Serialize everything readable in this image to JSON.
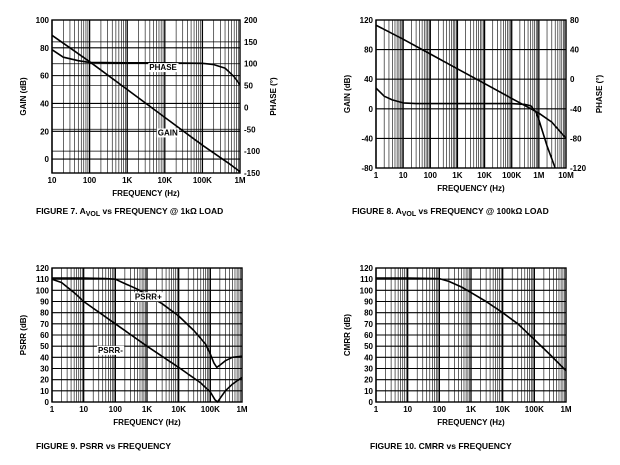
{
  "charts": [
    {
      "type": "line",
      "caption": "FIGURE 7.  AVOL vs FREQUENCY @ 1kΩ LOAD",
      "caption_parts": {
        "pre": "FIGURE 7.  A",
        "sub": "VOL",
        "post": " vs FREQUENCY @ 1kΩ LOAD"
      },
      "xlabel": "FREQUENCY (Hz)",
      "ylabel": "GAIN (dB)",
      "y2label": "PHASE (°)",
      "xlim": [
        10,
        1000000
      ],
      "x_ticks": [
        {
          "v": 10,
          "t": "10"
        },
        {
          "v": 100,
          "t": "100"
        },
        {
          "v": 1000,
          "t": "1K"
        },
        {
          "v": 10000,
          "t": "10K"
        },
        {
          "v": 100000,
          "t": "100K"
        },
        {
          "v": 1000000,
          "t": "1M"
        }
      ],
      "ylim": [
        -10,
        100
      ],
      "y_ticks": [
        {
          "v": 100,
          "t": "100"
        },
        {
          "v": 80,
          "t": "80"
        },
        {
          "v": 60,
          "t": "60"
        },
        {
          "v": 40,
          "t": "40"
        },
        {
          "v": 20,
          "t": "20"
        },
        {
          "v": 0,
          "t": "0"
        }
      ],
      "y2lim": [
        -150,
        200
      ],
      "y2_ticks": [
        {
          "v": 200,
          "t": "200"
        },
        {
          "v": 150,
          "t": "150"
        },
        {
          "v": 100,
          "t": "100"
        },
        {
          "v": 50,
          "t": "50"
        },
        {
          "v": 0,
          "t": "0"
        },
        {
          "v": -50,
          "t": "-50"
        },
        {
          "v": -100,
          "t": "-100"
        },
        {
          "v": -150,
          "t": "-150"
        }
      ],
      "series": [
        {
          "name": "GAIN",
          "axis": "y",
          "x": [
            10,
            30,
            100,
            1000,
            10000,
            100000,
            500000,
            1000000
          ],
          "values": [
            89,
            80,
            70,
            50,
            30,
            10,
            -3,
            -9
          ]
        },
        {
          "name": "PHASE",
          "axis": "y2",
          "x": [
            10,
            20,
            50,
            100,
            1000,
            10000,
            100000,
            200000,
            400000,
            700000,
            1000000
          ],
          "values": [
            132,
            115,
            107,
            103,
            102,
            102,
            101,
            98,
            90,
            70,
            52
          ]
        }
      ],
      "annotations": [
        {
          "text": "PHASE",
          "x": 9000,
          "y": 64
        },
        {
          "text": "GAIN",
          "x": 12000,
          "y": 17
        }
      ]
    },
    {
      "type": "line",
      "caption": "FIGURE 8.  AVOL vs FREQUENCY @ 100kΩ LOAD",
      "caption_parts": {
        "pre": "FIGURE 8.  A",
        "sub": "VOL",
        "post": " vs FREQUENCY @ 100kΩ LOAD"
      },
      "xlabel": "FREQUENCY (Hz)",
      "ylabel": "GAIN (dB)",
      "y2label": "PHASE (°)",
      "xlim": [
        1,
        10000000
      ],
      "x_ticks": [
        {
          "v": 1,
          "t": "1"
        },
        {
          "v": 10,
          "t": "10"
        },
        {
          "v": 100,
          "t": "100"
        },
        {
          "v": 1000,
          "t": "1K"
        },
        {
          "v": 10000,
          "t": "10K"
        },
        {
          "v": 100000,
          "t": "100K"
        },
        {
          "v": 1000000,
          "t": "1M"
        },
        {
          "v": 10000000,
          "t": "10M"
        }
      ],
      "ylim": [
        -80,
        120
      ],
      "y_ticks": [
        {
          "v": 120,
          "t": "120"
        },
        {
          "v": 80,
          "t": "80"
        },
        {
          "v": 40,
          "t": "40"
        },
        {
          "v": 0,
          "t": "0"
        },
        {
          "v": -40,
          "t": "-40"
        },
        {
          "v": -80,
          "t": "-80"
        }
      ],
      "y2lim": [
        -120,
        80
      ],
      "y2_ticks": [
        {
          "v": 80,
          "t": "80"
        },
        {
          "v": 40,
          "t": "40"
        },
        {
          "v": 0,
          "t": "0"
        },
        {
          "v": -40,
          "t": "-40"
        },
        {
          "v": -80,
          "t": "-80"
        },
        {
          "v": -120,
          "t": "-120"
        }
      ],
      "series": [
        {
          "name": "GAIN",
          "axis": "y",
          "x": [
            1,
            10,
            100,
            1000,
            10000,
            100000,
            1000000,
            3000000,
            10000000
          ],
          "values": [
            113,
            94,
            74,
            54,
            34,
            14,
            -6,
            -18,
            -40
          ]
        },
        {
          "name": "PHASE",
          "axis": "y2",
          "x": [
            1,
            2,
            4,
            10,
            30,
            100,
            1000,
            10000,
            100000,
            300000,
            500000,
            800000,
            1000000,
            2000000,
            4000000
          ],
          "values": [
            -12,
            -23,
            -28,
            -32,
            -33,
            -33,
            -33,
            -33,
            -33,
            -34,
            -36,
            -45,
            -55,
            -90,
            -120
          ]
        }
      ],
      "annotations": []
    },
    {
      "type": "line",
      "caption": "FIGURE 9.  PSRR vs FREQUENCY",
      "xlabel": "FREQUENCY (Hz)",
      "ylabel": "PSRR (dB)",
      "xlim": [
        1,
        1000000
      ],
      "x_ticks": [
        {
          "v": 1,
          "t": "1"
        },
        {
          "v": 10,
          "t": "10"
        },
        {
          "v": 100,
          "t": "100"
        },
        {
          "v": 1000,
          "t": "1K"
        },
        {
          "v": 10000,
          "t": "10K"
        },
        {
          "v": 100000,
          "t": "100K"
        },
        {
          "v": 1000000,
          "t": "1M"
        }
      ],
      "ylim": [
        0,
        120
      ],
      "y_ticks": [
        {
          "v": 120,
          "t": "120"
        },
        {
          "v": 110,
          "t": "110"
        },
        {
          "v": 100,
          "t": "100"
        },
        {
          "v": 90,
          "t": "90"
        },
        {
          "v": 80,
          "t": "80"
        },
        {
          "v": 70,
          "t": "70"
        },
        {
          "v": 60,
          "t": "60"
        },
        {
          "v": 50,
          "t": "50"
        },
        {
          "v": 40,
          "t": "40"
        },
        {
          "v": 30,
          "t": "30"
        },
        {
          "v": 20,
          "t": "20"
        },
        {
          "v": 10,
          "t": "10"
        },
        {
          "v": 0,
          "t": "0"
        }
      ],
      "series": [
        {
          "name": "PSRR+",
          "axis": "y",
          "x": [
            1,
            10,
            50,
            100,
            200,
            500,
            1000,
            3000,
            10000,
            30000,
            70000,
            100000,
            130000,
            160000,
            200000,
            300000,
            500000,
            1000000
          ],
          "values": [
            111,
            111,
            110.5,
            110,
            106,
            101,
            96,
            88,
            77,
            64,
            52,
            43,
            35,
            31,
            33,
            37,
            40,
            41
          ]
        },
        {
          "name": "PSRR-",
          "axis": "y",
          "x": [
            1,
            2,
            5,
            10,
            100,
            1000,
            10000,
            50000,
            100000,
            140000,
            170000,
            200000,
            300000,
            500000,
            1000000
          ],
          "values": [
            110,
            107,
            98,
            90,
            70,
            50,
            31,
            17,
            9,
            2,
            0,
            3,
            10,
            16,
            22
          ]
        }
      ],
      "annotations": [
        {
          "text": "PSRR+",
          "x": 1100,
          "y": 92
        },
        {
          "text": "PSRR-",
          "x": 70,
          "y": 44
        }
      ]
    },
    {
      "type": "line",
      "caption": "FIGURE 10.  CMRR vs FREQUENCY",
      "xlabel": "FREQUENCY (Hz)",
      "ylabel": "CMRR (dB)",
      "xlim": [
        1,
        1000000
      ],
      "x_ticks": [
        {
          "v": 1,
          "t": "1"
        },
        {
          "v": 10,
          "t": "10"
        },
        {
          "v": 100,
          "t": "100"
        },
        {
          "v": 1000,
          "t": "1K"
        },
        {
          "v": 10000,
          "t": "10K"
        },
        {
          "v": 100000,
          "t": "100K"
        },
        {
          "v": 1000000,
          "t": "1M"
        }
      ],
      "ylim": [
        0,
        120
      ],
      "y_ticks": [
        {
          "v": 120,
          "t": "120"
        },
        {
          "v": 110,
          "t": "110"
        },
        {
          "v": 100,
          "t": "100"
        },
        {
          "v": 90,
          "t": "90"
        },
        {
          "v": 80,
          "t": "80"
        },
        {
          "v": 70,
          "t": "70"
        },
        {
          "v": 60,
          "t": "60"
        },
        {
          "v": 50,
          "t": "50"
        },
        {
          "v": 40,
          "t": "40"
        },
        {
          "v": 30,
          "t": "30"
        },
        {
          "v": 20,
          "t": "20"
        },
        {
          "v": 10,
          "t": "10"
        },
        {
          "v": 0,
          "t": "0"
        }
      ],
      "series": [
        {
          "name": "CMRR",
          "axis": "y",
          "x": [
            1,
            10,
            100,
            200,
            500,
            1000,
            3000,
            10000,
            30000,
            100000,
            300000,
            1000000
          ],
          "values": [
            111,
            111,
            110.5,
            108,
            103,
            98,
            90,
            80,
            70,
            56,
            43,
            28
          ]
        }
      ],
      "annotations": []
    }
  ]
}
